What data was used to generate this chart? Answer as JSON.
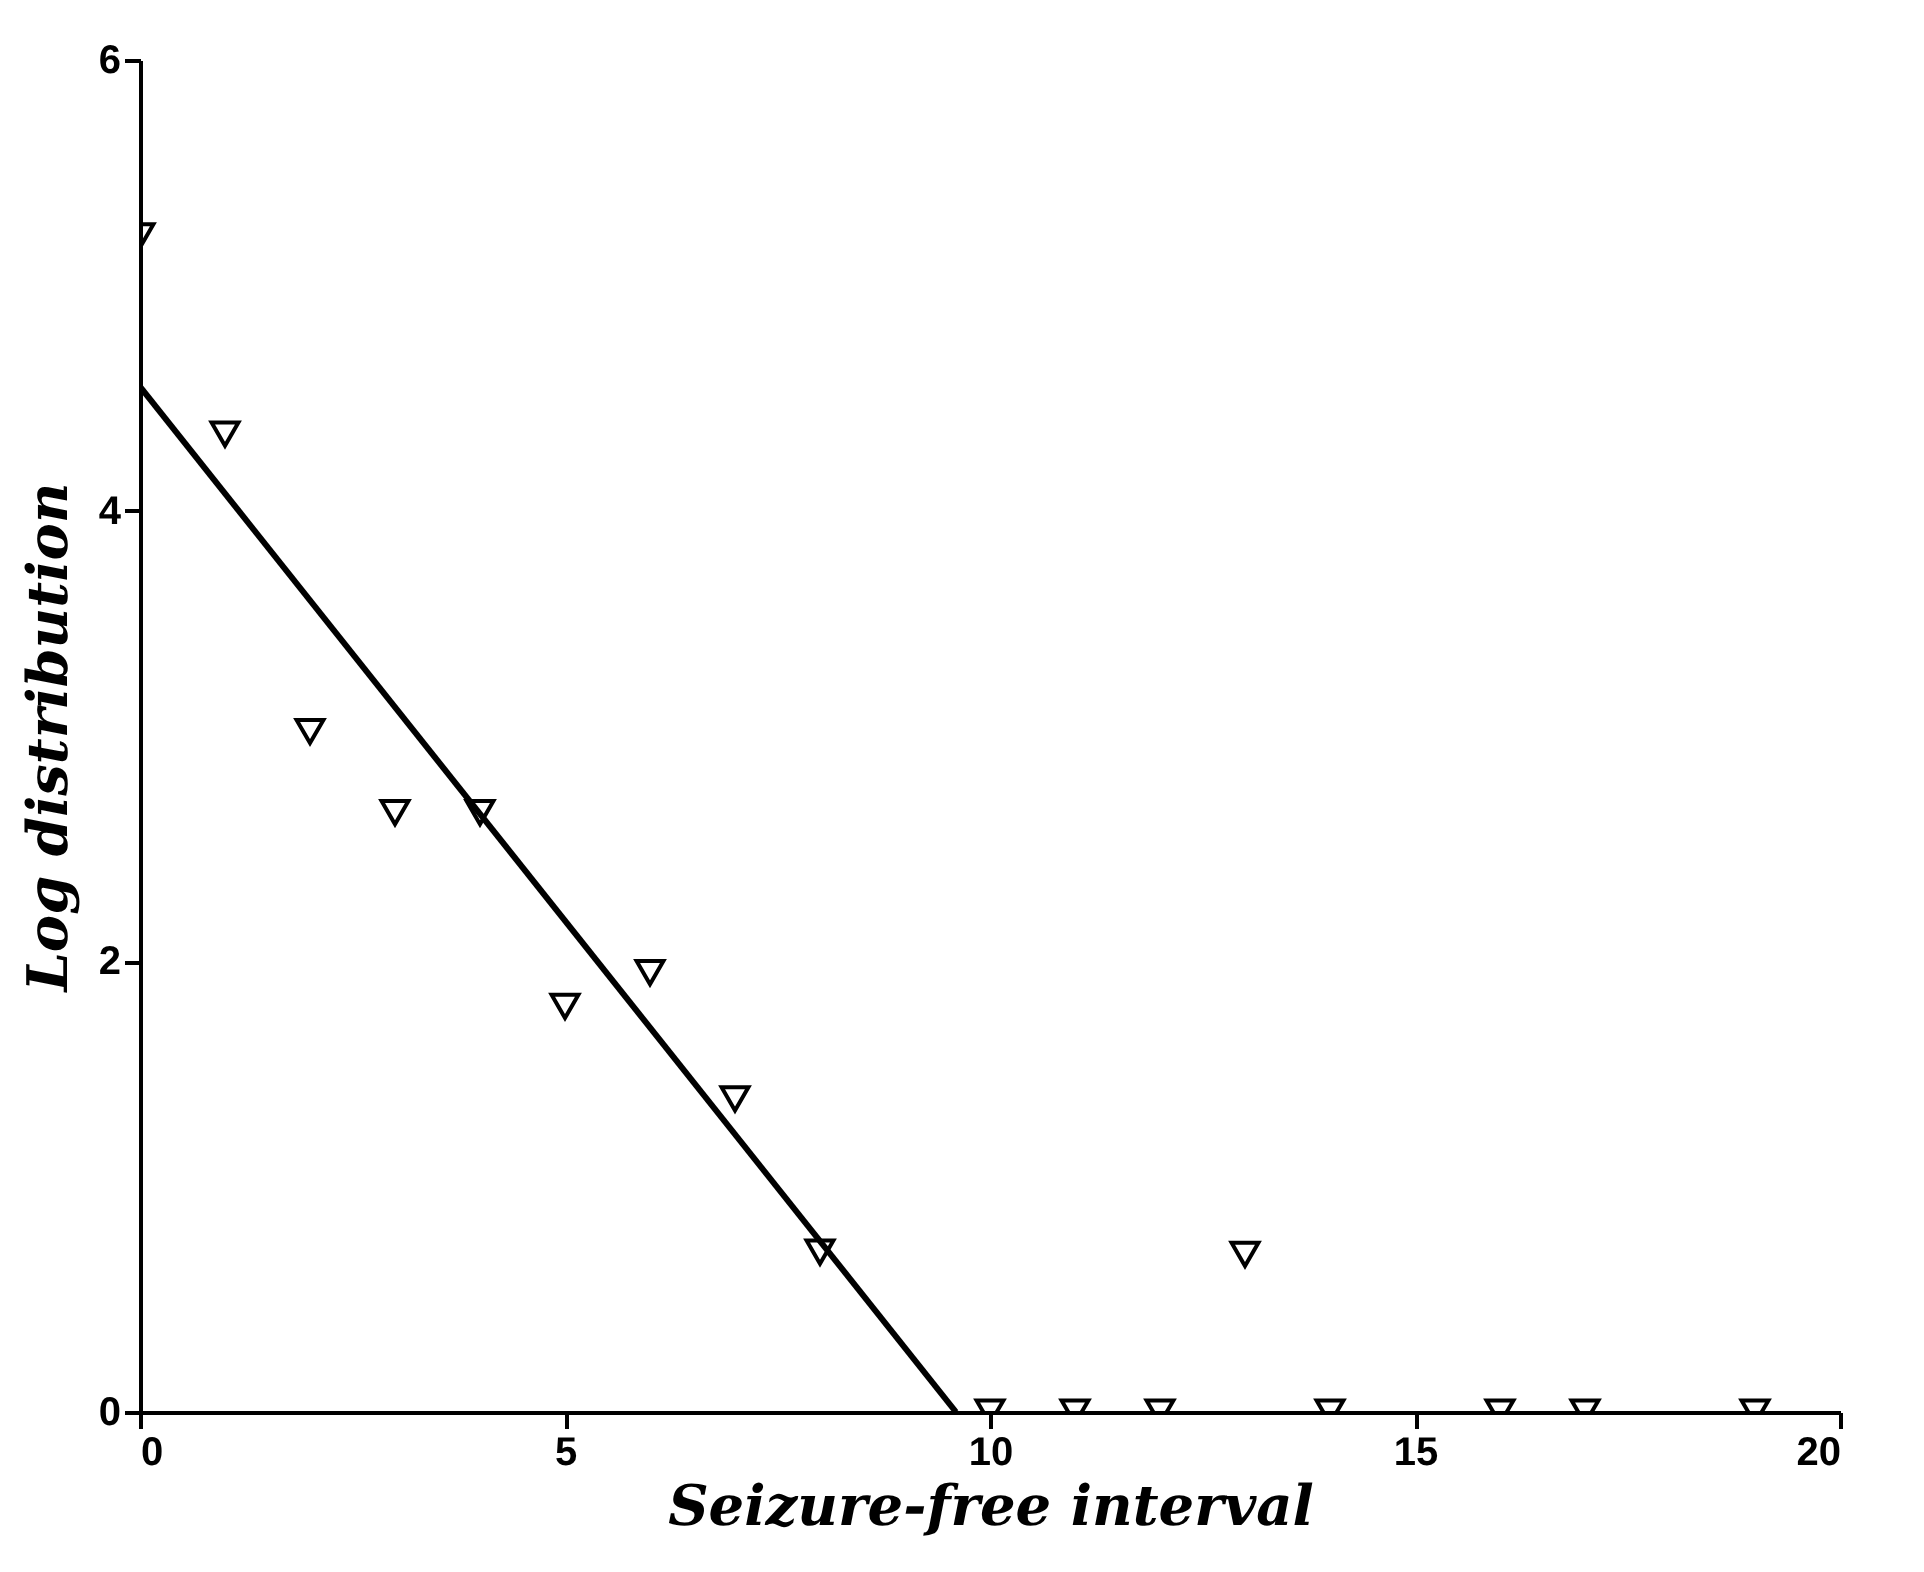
{
  "chart_data": {
    "type": "scatter",
    "xlabel": "Seizure-free interval",
    "ylabel": "Log distribution",
    "xlim": [
      0,
      20
    ],
    "ylim": [
      0,
      6
    ],
    "xticks": [
      0,
      5,
      10,
      15,
      20
    ],
    "yticks": [
      0,
      2,
      4,
      6
    ],
    "grid": false,
    "marker": "triangle",
    "series": [
      {
        "color": "#000000",
        "x": [
          0,
          1,
          2,
          3,
          4,
          5,
          6,
          7,
          8,
          10,
          11,
          12,
          13,
          14,
          16,
          17,
          19
        ],
        "values": [
          5.22,
          4.34,
          3.02,
          2.66,
          2.66,
          1.8,
          1.95,
          1.39,
          0.71,
          0,
          0,
          0,
          0.7,
          0,
          0,
          0,
          0
        ]
      },
      {
        "type": "line",
        "color": "#000000",
        "line_style": "solid",
        "marker": "none",
        "x": [
          0,
          9.6
        ],
        "values": [
          4.55,
          0
        ]
      }
    ]
  }
}
